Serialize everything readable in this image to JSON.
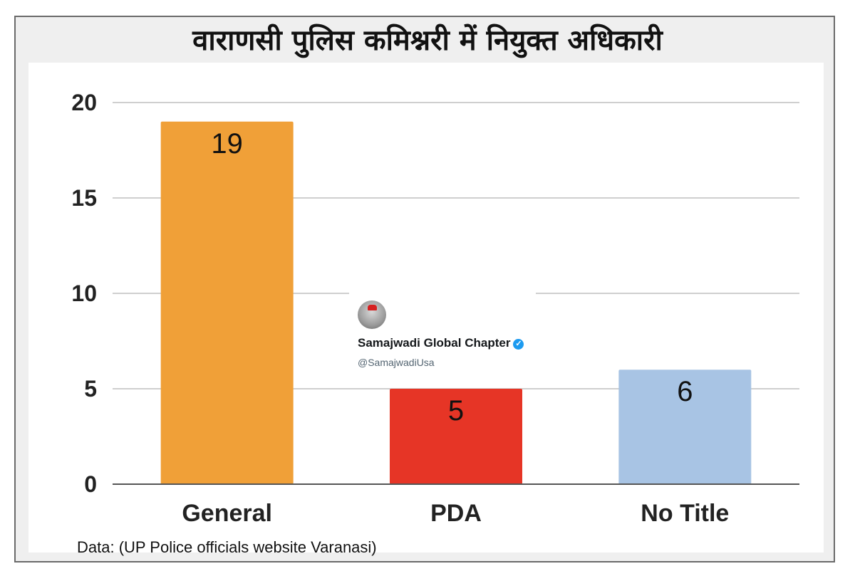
{
  "title": "वाराणसी पुलिस कमिश्नरी में नियुक्त अधिकारी",
  "source_note": "Data: (UP Police officials website Varanasi)",
  "watermark": {
    "account_name": "Samajwadi Global Chapter",
    "handle": "@SamajwadiUsa",
    "verified_icon": "verified-badge-icon"
  },
  "colors": {
    "general": "#F0A038",
    "pda": "#E63526",
    "no_title": "#A8C4E4",
    "grid": "#cfcfcf",
    "axis": "#555555"
  },
  "chart_data": {
    "type": "bar",
    "title": "वाराणसी पुलिस कमिश्नरी में नियुक्त अधिकारी",
    "categories": [
      "General",
      "PDA",
      "No Title"
    ],
    "values": [
      19,
      5,
      6
    ],
    "data_labels": [
      "19",
      "5",
      "6"
    ],
    "bar_colors": [
      "#F0A038",
      "#E63526",
      "#A8C4E4"
    ],
    "ylim": [
      0,
      20
    ],
    "yticks": [
      0,
      5,
      10,
      15,
      20
    ],
    "grid": true,
    "xlabel": "",
    "ylabel": ""
  }
}
